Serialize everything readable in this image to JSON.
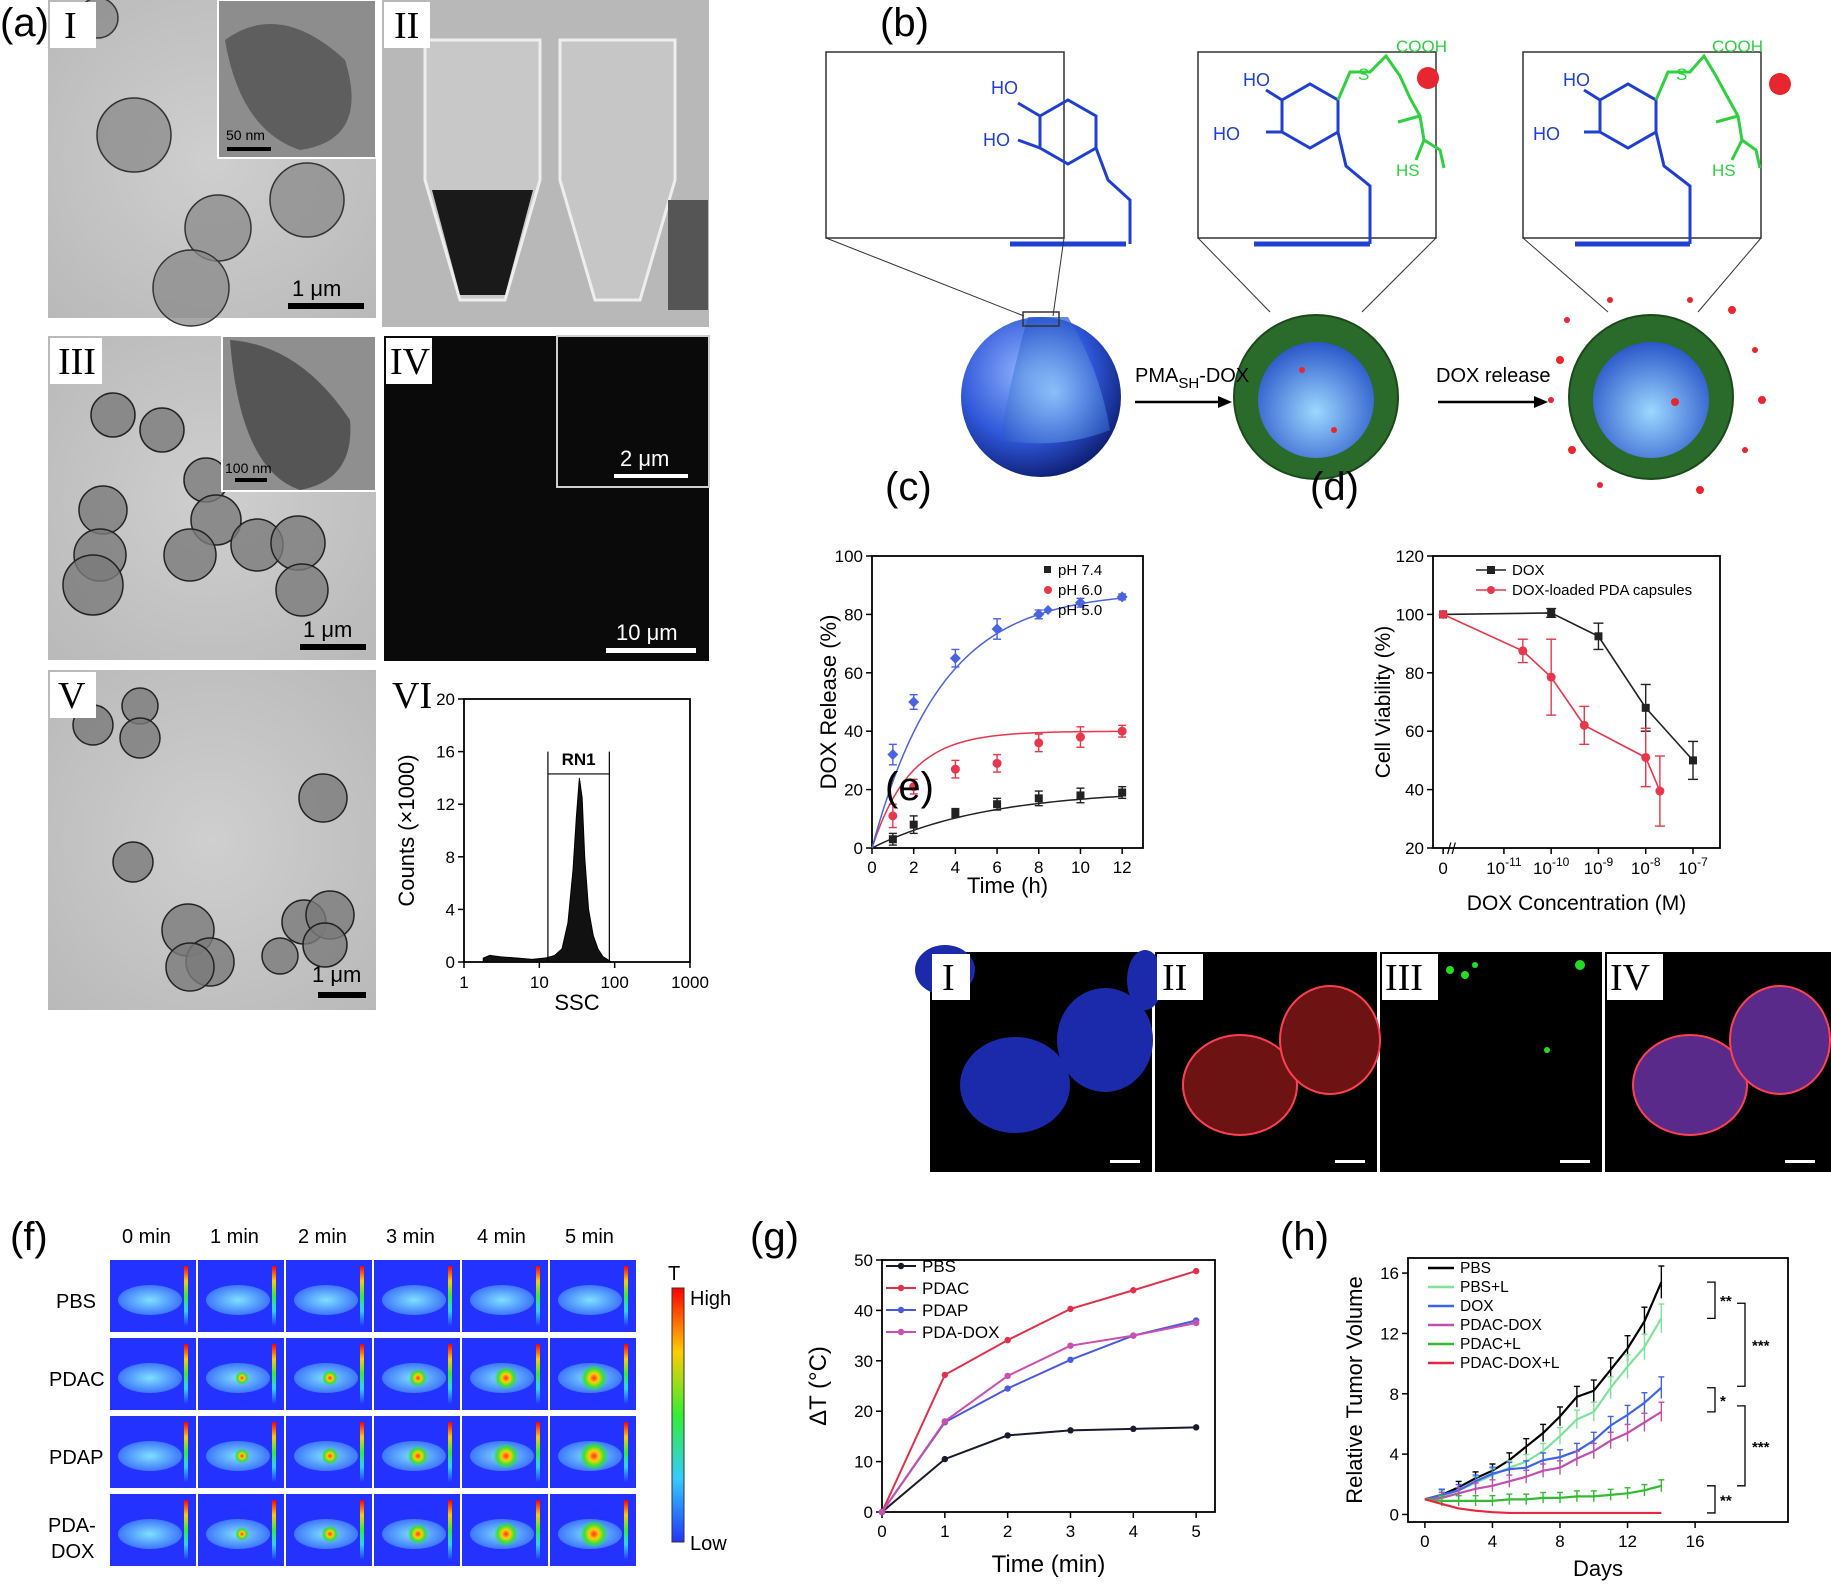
{
  "panel_labels": [
    "(a)",
    "(b)",
    "(c)",
    "(d)",
    "(e)",
    "(f)",
    "(g)",
    "(h)"
  ],
  "panel_a": {
    "roman": [
      "I",
      "II",
      "III",
      "IV",
      "V",
      "VI"
    ],
    "scalebars": {
      "I_main": "1 μm",
      "I_inset": "50 nm",
      "III_main": "1 μm",
      "III_inset": "100 nm",
      "IV_main": "10 μm",
      "IV_inset": "2 μm",
      "V_main": "1 μm"
    }
  },
  "panel_b": {
    "ho_top": "HO",
    "ho_bottom": "HO",
    "cooh": "COOH",
    "s": "S",
    "hs": "HS",
    "arrow1": "PMA",
    "arrow1_sub": "SH",
    "arrow1_tail": "-DOX",
    "arrow2": "DOX release"
  },
  "panel_e": {
    "roman": [
      "I",
      "II",
      "III",
      "IV"
    ]
  },
  "panel_f": {
    "times": [
      "0 min",
      "1 min",
      "2 min",
      "3 min",
      "4 min",
      "5 min"
    ],
    "rows": [
      "PBS",
      "PDAC",
      "PDAP",
      "PDA-",
      "DOX"
    ],
    "scale_title": "T",
    "scale_high": "High",
    "scale_low": "Low"
  },
  "chart_data": [
    {
      "id": "a-VI",
      "type": "area",
      "xlabel": "SSC",
      "ylabel": "Counts (×1000)",
      "x_scale": "log",
      "xlim": [
        1,
        1000
      ],
      "ylim": [
        0,
        20
      ],
      "x_ticks": [
        "1",
        "10",
        "100",
        "1000"
      ],
      "y_ticks": [
        "0",
        "4",
        "8",
        "12",
        "16",
        "20"
      ],
      "gate_label": "RN1",
      "gate_range": [
        13,
        85
      ],
      "series": [
        {
          "x": [
            1.8,
            2.2,
            3,
            5,
            8,
            12,
            16,
            20,
            24,
            28,
            31,
            34,
            37,
            40,
            45,
            52,
            60,
            70,
            80,
            90
          ],
          "values": [
            0.3,
            0.5,
            0.4,
            0.3,
            0.2,
            0.3,
            0.5,
            1,
            3,
            7,
            11,
            14,
            12.5,
            8,
            4,
            2,
            1,
            0.4,
            0.2,
            0
          ]
        }
      ]
    },
    {
      "id": "c",
      "type": "scatter",
      "xlabel": "Time (h)",
      "ylabel": "DOX Release (%)",
      "xlim": [
        0,
        13
      ],
      "ylim": [
        0,
        100
      ],
      "x_ticks": [
        "0",
        "2",
        "4",
        "6",
        "8",
        "10",
        "12"
      ],
      "y_ticks": [
        "0",
        "20",
        "40",
        "60",
        "80",
        "100"
      ],
      "x": [
        1,
        2,
        4,
        6,
        8,
        10,
        12
      ],
      "series": [
        {
          "name": "pH 7.4",
          "color": "#222222",
          "values": [
            3,
            8,
            12,
            15,
            17,
            18,
            19
          ],
          "err": [
            2,
            3,
            1.5,
            2,
            2.5,
            2.5,
            2
          ],
          "fit_max": 20,
          "fit_k": 0.18
        },
        {
          "name": "pH 6.0",
          "color": "#e8364b",
          "values": [
            11,
            21,
            27,
            29,
            36,
            38,
            40
          ],
          "err": [
            4,
            2.5,
            3,
            3,
            3,
            3.5,
            2
          ],
          "fit_max": 40,
          "fit_k": 0.55
        },
        {
          "name": "pH 5.0",
          "color": "#4a63e0",
          "values": [
            32,
            50,
            65,
            75,
            80,
            84,
            86
          ],
          "err": [
            3.5,
            2.5,
            3,
            3.5,
            1.5,
            1.5,
            1
          ],
          "fit_max": 88,
          "fit_k": 0.3
        }
      ]
    },
    {
      "id": "d",
      "type": "line",
      "xlabel": "DOX Concentration (M)",
      "ylabel": "Cell Viability (%)",
      "ylim": [
        20,
        120
      ],
      "x_ticks": [
        "0",
        "10",
        "10",
        "10",
        "10",
        "10"
      ],
      "x_tick_exp": [
        "",
        "-11",
        "-10",
        "-9",
        "-8",
        "-7"
      ],
      "y_ticks": [
        "20",
        "40",
        "60",
        "80",
        "100",
        "120"
      ],
      "series": [
        {
          "name": "DOX",
          "color": "#222222",
          "x": [
            -99,
            -10,
            -9,
            -8,
            -7
          ],
          "values": [
            100,
            100.5,
            92.5,
            68,
            50
          ],
          "err": [
            0,
            1.5,
            4.5,
            8,
            6.5
          ]
        },
        {
          "name": "DOX-loaded PDA capsules",
          "color": "#e8364b",
          "x": [
            -99,
            -10.6,
            -10,
            -9.3,
            -8,
            -7.7
          ],
          "values": [
            100,
            87.5,
            78.5,
            62,
            51,
            39.5
          ],
          "err": [
            0,
            4,
            13,
            6.5,
            10,
            12
          ]
        }
      ]
    },
    {
      "id": "g",
      "type": "line",
      "xlabel": "Time (min)",
      "ylabel": "ΔT (°C)",
      "xlim": [
        0,
        5
      ],
      "ylim": [
        0,
        50
      ],
      "x_ticks": [
        "0",
        "1",
        "2",
        "3",
        "4",
        "5"
      ],
      "y_ticks": [
        "0",
        "10",
        "20",
        "30",
        "40",
        "50"
      ],
      "x": [
        0,
        1,
        2,
        3,
        4,
        5
      ],
      "series": [
        {
          "name": "PBS",
          "color": "#1a1a2e",
          "values": [
            0,
            10.5,
            15.2,
            16.2,
            16.5,
            16.8
          ]
        },
        {
          "name": "PDAC",
          "color": "#e0304a",
          "values": [
            0,
            27.2,
            34.1,
            40.3,
            44,
            47.8
          ]
        },
        {
          "name": "PDAP",
          "color": "#4a5ae0",
          "values": [
            0,
            17.8,
            24.5,
            30.2,
            35,
            38
          ]
        },
        {
          "name": "PDA-DOX",
          "color": "#c94fb0",
          "values": [
            0,
            18,
            27,
            33,
            35,
            37.5
          ]
        }
      ]
    },
    {
      "id": "h",
      "type": "line",
      "xlabel": "Days",
      "ylabel": "Relative Tumor Volume",
      "xlim": [
        0,
        20
      ],
      "ylim": [
        0,
        17
      ],
      "x_ticks": [
        "0",
        "4",
        "8",
        "12",
        "16"
      ],
      "y_ticks": [
        "0",
        "4",
        "8",
        "12",
        "16"
      ],
      "x": [
        0,
        1,
        2,
        3,
        4,
        5,
        6,
        7,
        8,
        9,
        10,
        11,
        12,
        13,
        14
      ],
      "series": [
        {
          "name": "PBS",
          "color": "#000000",
          "values": [
            1,
            1.3,
            1.8,
            2.4,
            2.9,
            3.6,
            4.5,
            5.4,
            6.5,
            7.8,
            8.2,
            9.6,
            11,
            12.8,
            15.4
          ]
        },
        {
          "name": "PBS+L",
          "color": "#7fe39a",
          "values": [
            1,
            1.2,
            1.6,
            2.1,
            2.6,
            3.1,
            3.5,
            4.2,
            5.2,
            6.3,
            6.8,
            8.4,
            9.8,
            11.1,
            13
          ]
        },
        {
          "name": "DOX",
          "color": "#3f63e6",
          "values": [
            1,
            1.3,
            1.6,
            2.2,
            2.7,
            3,
            3.1,
            3.6,
            3.8,
            4.2,
            4.9,
            5.9,
            6.6,
            7.4,
            8.4
          ]
        },
        {
          "name": "PDAC-DOX",
          "color": "#c04fb0",
          "values": [
            1,
            1.1,
            1.4,
            1.7,
            1.9,
            2.2,
            2.5,
            2.9,
            3.1,
            3.7,
            4.2,
            4.9,
            5.4,
            6.1,
            6.8
          ]
        },
        {
          "name": "PDAC+L",
          "color": "#33bb33",
          "values": [
            1,
            0.9,
            0.9,
            0.9,
            0.9,
            1,
            1,
            1.1,
            1.1,
            1.2,
            1.2,
            1.3,
            1.4,
            1.6,
            1.9
          ]
        },
        {
          "name": "PDAC-DOX+L",
          "color": "#e8263f",
          "values": [
            1,
            0.7,
            0.4,
            0.25,
            0.15,
            0.1,
            0.1,
            0.1,
            0.1,
            0.1,
            0.1,
            0.1,
            0.1,
            0.1,
            0.1
          ]
        }
      ],
      "significance": [
        "**",
        "***",
        "*",
        "***",
        "**"
      ]
    }
  ]
}
